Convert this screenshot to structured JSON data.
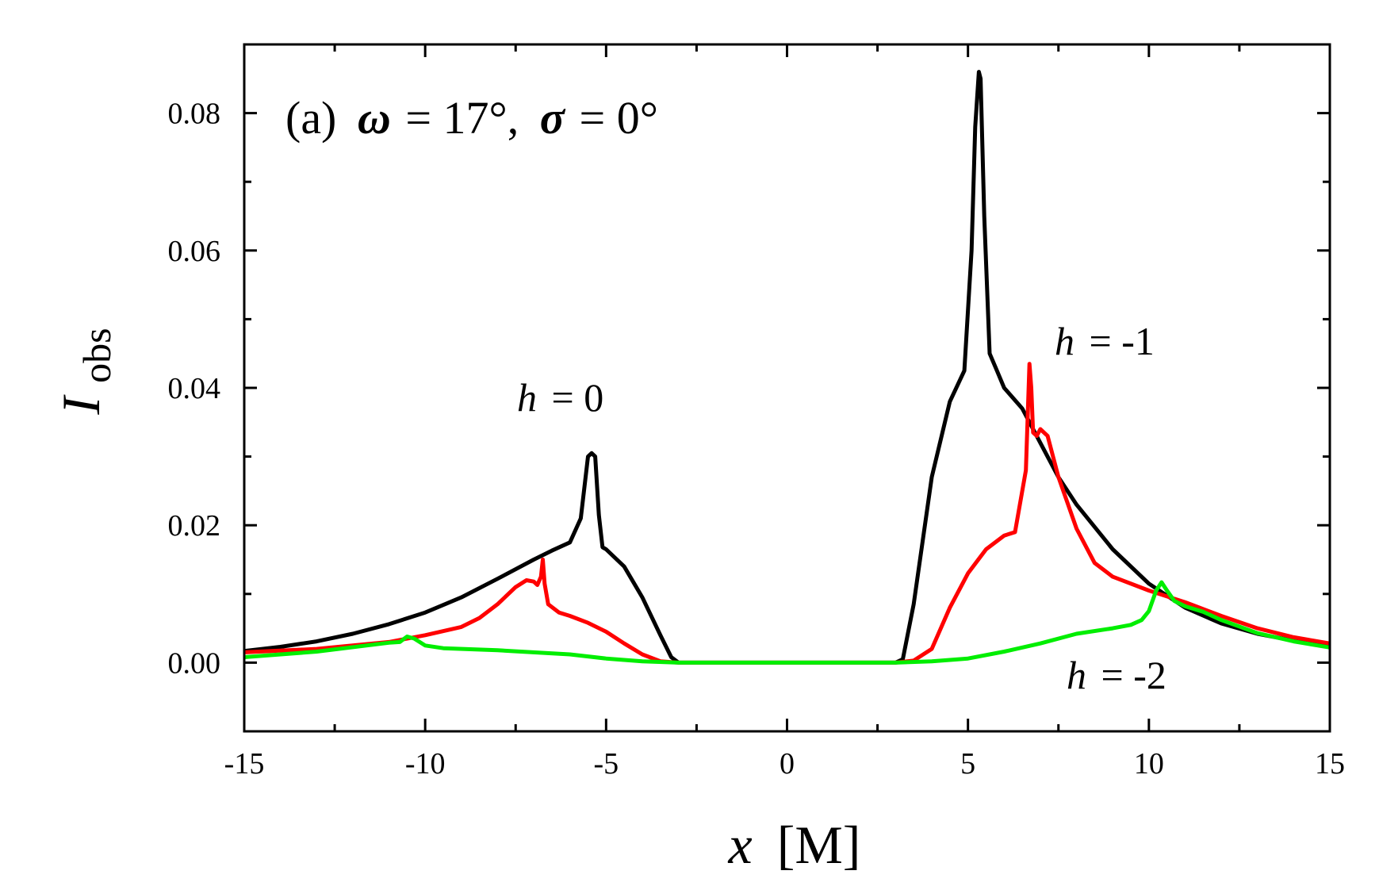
{
  "chart_data": {
    "type": "line",
    "title": "",
    "panel_label": "(a)",
    "annotation": {
      "omega_symbol": "ω",
      "omega_value": "= 17°,",
      "sigma_symbol": "σ",
      "sigma_value": "= 0°"
    },
    "xlabel": {
      "var": "x",
      "unit": "[M]"
    },
    "ylabel": {
      "var": "I",
      "sub": "obs"
    },
    "xlim": [
      -15,
      15
    ],
    "ylim": [
      -0.01,
      0.09
    ],
    "xticks": [
      -15,
      -10,
      -5,
      0,
      5,
      10,
      15
    ],
    "xtick_labels": [
      "-15",
      "-10",
      "-5",
      "0",
      "5",
      "10",
      "15"
    ],
    "yticks": [
      0.0,
      0.02,
      0.04,
      0.06,
      0.08
    ],
    "ytick_labels": [
      "0.00",
      "0.02",
      "0.04",
      "0.06",
      "0.08"
    ],
    "grid": false,
    "series": [
      {
        "name": "h = 0",
        "label_var": "h",
        "label_value": "= 0",
        "color": "#000000",
        "x": [
          -15,
          -14,
          -13,
          -12,
          -11,
          -10,
          -9,
          -8,
          -7,
          -6.5,
          -6,
          -5.7,
          -5.5,
          -5.4,
          -5.3,
          -5.2,
          -5.1,
          -5.0,
          -4.5,
          -4,
          -3.5,
          -3.2,
          -3,
          3,
          3.2,
          3.5,
          4,
          4.5,
          4.9,
          5.1,
          5.2,
          5.3,
          5.35,
          5.45,
          5.6,
          5.8,
          6,
          6.5,
          7,
          7.5,
          8,
          9,
          10,
          11,
          12,
          13,
          14,
          15
        ],
        "y": [
          0.0017,
          0.0023,
          0.0031,
          0.0042,
          0.0056,
          0.0073,
          0.0095,
          0.0122,
          0.015,
          0.0163,
          0.0175,
          0.021,
          0.03,
          0.0305,
          0.03,
          0.0215,
          0.0168,
          0.0165,
          0.014,
          0.0095,
          0.004,
          0.0008,
          0.0,
          0.0,
          0.0005,
          0.0085,
          0.027,
          0.038,
          0.0425,
          0.06,
          0.078,
          0.086,
          0.085,
          0.065,
          0.045,
          0.0425,
          0.04,
          0.037,
          0.032,
          0.027,
          0.023,
          0.0165,
          0.0115,
          0.008,
          0.0057,
          0.0042,
          0.0032,
          0.0025
        ]
      },
      {
        "name": "h = -1",
        "label_var": "h",
        "label_value": "= -1",
        "color": "#ff0000",
        "x": [
          -15,
          -13,
          -11,
          -10,
          -9,
          -8.5,
          -8,
          -7.5,
          -7.2,
          -7,
          -6.9,
          -6.8,
          -6.75,
          -6.7,
          -6.6,
          -6.3,
          -6,
          -5.5,
          -5,
          -4.5,
          -4,
          -3.5,
          -3,
          3,
          3.5,
          4,
          4.5,
          5,
          5.5,
          6,
          6.3,
          6.6,
          6.7,
          6.75,
          6.8,
          6.9,
          7.0,
          7.2,
          7.5,
          8,
          8.5,
          9,
          10,
          11,
          12,
          13,
          14,
          15
        ],
        "y": [
          0.0015,
          0.002,
          0.003,
          0.004,
          0.0052,
          0.0065,
          0.0085,
          0.011,
          0.012,
          0.0118,
          0.0113,
          0.0125,
          0.015,
          0.0115,
          0.0085,
          0.0073,
          0.0068,
          0.0058,
          0.0045,
          0.0028,
          0.0012,
          0.0002,
          0.0,
          0.0,
          0.0003,
          0.002,
          0.008,
          0.013,
          0.0165,
          0.0185,
          0.019,
          0.028,
          0.0435,
          0.04,
          0.0335,
          0.033,
          0.034,
          0.033,
          0.027,
          0.0195,
          0.0145,
          0.0125,
          0.0105,
          0.0088,
          0.0068,
          0.005,
          0.0037,
          0.0028
        ]
      },
      {
        "name": "h = -2",
        "label_var": "h",
        "label_value": "= -2",
        "color": "#00ee00",
        "x": [
          -15,
          -13,
          -11,
          -10.7,
          -10.5,
          -10.3,
          -10.0,
          -9.5,
          -8,
          -6,
          -5,
          -4,
          -3,
          3,
          4,
          5,
          6,
          7,
          8,
          9,
          9.5,
          9.8,
          10.0,
          10.2,
          10.35,
          10.5,
          10.7,
          11,
          11.5,
          12,
          13,
          14,
          15
        ],
        "y": [
          0.0008,
          0.0016,
          0.0029,
          0.003,
          0.0038,
          0.0035,
          0.0025,
          0.0021,
          0.0018,
          0.0012,
          0.0006,
          0.0002,
          0.0,
          0.0,
          0.0002,
          0.0006,
          0.0016,
          0.0028,
          0.0042,
          0.005,
          0.0055,
          0.0062,
          0.0075,
          0.0105,
          0.0117,
          0.0105,
          0.009,
          0.0082,
          0.0074,
          0.0062,
          0.0043,
          0.0031,
          0.0022
        ]
      }
    ]
  }
}
